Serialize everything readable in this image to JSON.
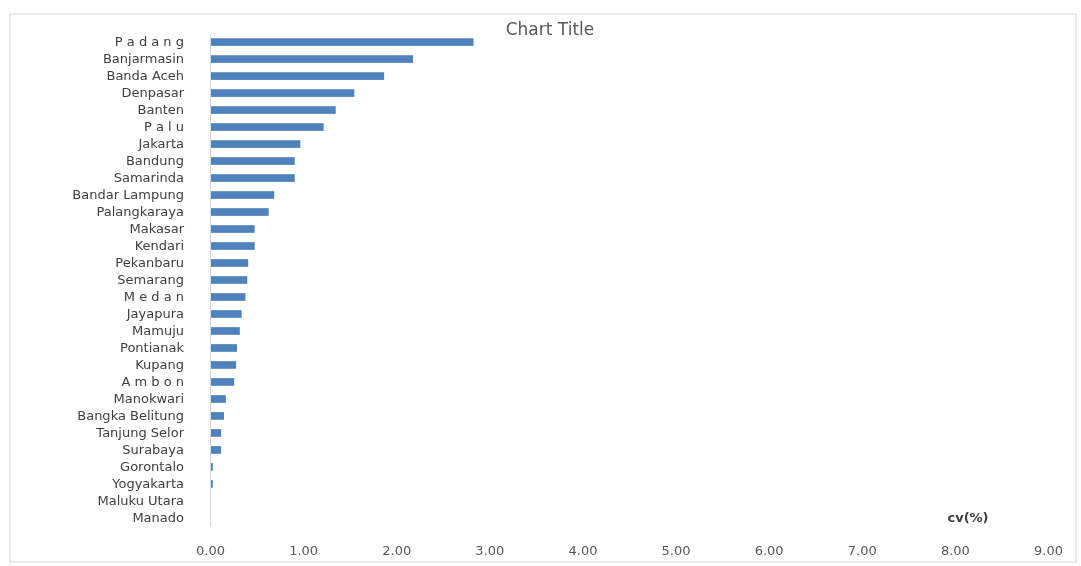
{
  "chart_data": {
    "type": "bar",
    "orientation": "horizontal",
    "title": "Chart Title",
    "xlabel": "cv(%)",
    "categories": [
      "P a d a n g",
      "Banjarmasin",
      "Banda Aceh",
      "Denpasar",
      "Banten",
      "P a l u",
      "Jakarta",
      "Bandung",
      "Samarinda",
      "Bandar Lampung",
      "Palangkaraya",
      "Makasar",
      "Kendari",
      "Pekanbaru",
      "Semarang",
      "M e d a n",
      "Jayapura",
      "Mamuju",
      "Pontianak",
      "Kupang",
      "A m b o n",
      "Manokwari",
      "Bangka Belitung",
      "Tanjung Selor",
      "Surabaya",
      "Gorontalo",
      "Yogyakarta",
      "Maluku Utara",
      "Manado"
    ],
    "values": [
      2.83,
      2.18,
      1.87,
      1.55,
      1.35,
      1.22,
      0.97,
      0.91,
      0.91,
      0.69,
      0.63,
      0.48,
      0.48,
      0.41,
      0.4,
      0.38,
      0.34,
      0.32,
      0.29,
      0.28,
      0.26,
      0.17,
      0.15,
      0.12,
      0.12,
      0.03,
      0.03,
      0,
      0
    ],
    "color": "#4f81bd",
    "xlim": [
      0,
      9
    ],
    "xticks": [
      {
        "value": 0,
        "label": "0.00"
      },
      {
        "value": 1,
        "label": "1.00"
      },
      {
        "value": 2,
        "label": "2.00"
      },
      {
        "value": 3,
        "label": "3.00"
      },
      {
        "value": 4,
        "label": "4.00"
      },
      {
        "value": 5,
        "label": "5.00"
      },
      {
        "value": 6,
        "label": "6.00"
      },
      {
        "value": 7,
        "label": "7.00"
      },
      {
        "value": 8,
        "label": "8.00"
      },
      {
        "value": 9,
        "label": "9.00"
      }
    ],
    "grid": false
  }
}
